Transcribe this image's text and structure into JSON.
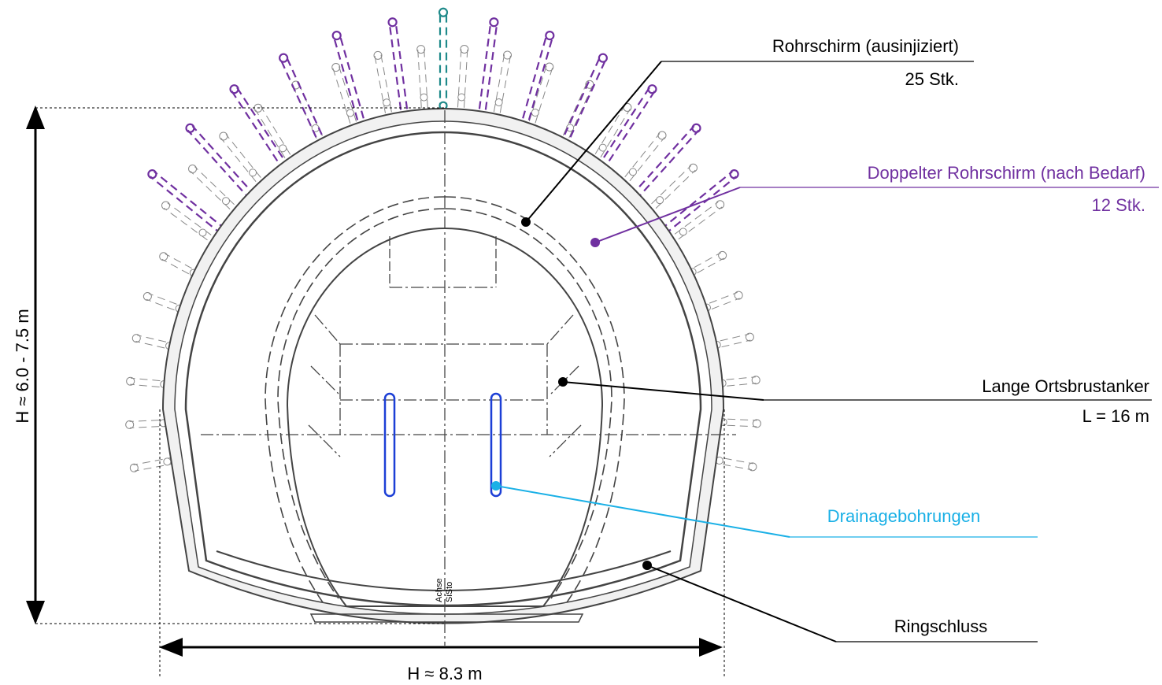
{
  "labels": [
    {
      "title": "Rohrschirm (ausinjiziert)",
      "detail": "25 Stk."
    },
    {
      "title": "Doppelter Rohrschirm (nach Bedarf)",
      "detail": "12 Stk."
    },
    {
      "title": "Lange Ortsbrustanker",
      "detail": "L = 16 m"
    },
    {
      "title": "Drainagebohrungen"
    },
    {
      "title": "Ringschluss"
    }
  ],
  "dimensions": {
    "height": "H ≈ 6.0 - 7.5 m",
    "width": "H ≈ 8.3 m"
  },
  "axis_labels": [
    "Achse",
    "SiSto"
  ]
}
